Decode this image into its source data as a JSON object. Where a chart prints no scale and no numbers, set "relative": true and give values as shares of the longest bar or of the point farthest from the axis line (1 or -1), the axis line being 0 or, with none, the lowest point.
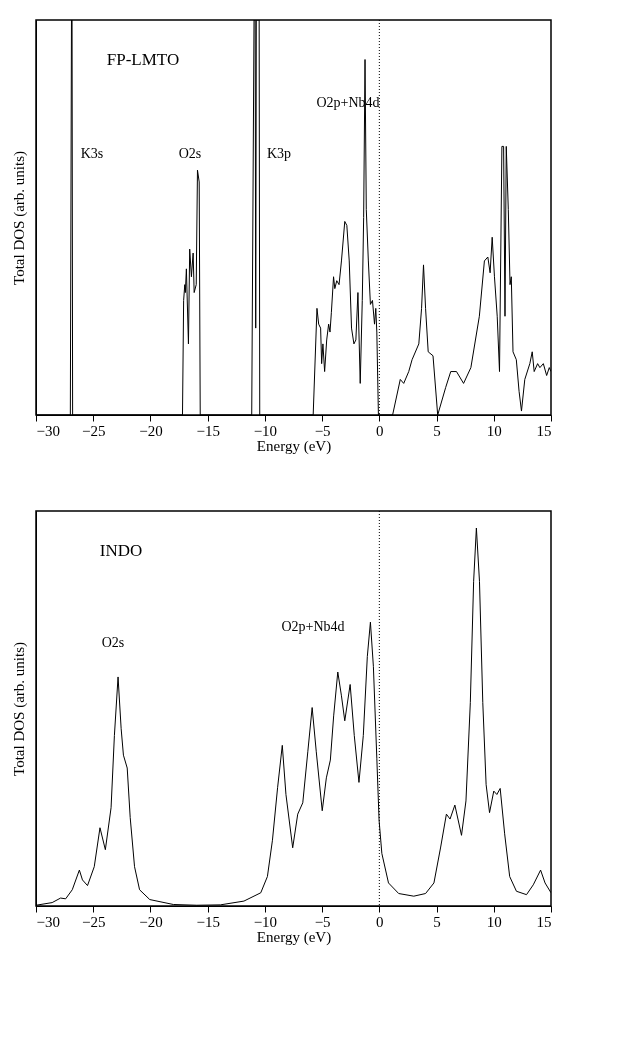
{
  "chart_data": [
    {
      "type": "line",
      "relative": true,
      "xlabel": "Energy (eV)",
      "ylabel": "Total DOS (arb. units)",
      "xlim": [
        -30,
        15
      ],
      "xticks": [
        -30,
        -25,
        -20,
        -15,
        -10,
        -5,
        0,
        5,
        10,
        15
      ],
      "tick_labels": "x",
      "grid": false,
      "line_style": "solid",
      "annotations": [
        "FP-LMTO",
        "K3s",
        "O2s",
        "K3p",
        "O2p+Nb4d"
      ],
      "ref_lines": [
        {
          "axis": "x",
          "value": 0,
          "label": null,
          "color": "#000000",
          "line_style": "dotted"
        }
      ],
      "series": [
        {
          "color": "#000000",
          "x": [
            -30,
            -27.0,
            -26.9,
            -26.85,
            -26.8,
            -17.2,
            -17.1,
            -17.0,
            -16.95,
            -16.86,
            -16.68,
            -16.57,
            -16.42,
            -16.27,
            -16.18,
            -16.0,
            -15.89,
            -15.74,
            -15.65,
            -11.15,
            -10.95,
            -10.85,
            -10.8,
            -10.75,
            -10.5,
            -10.45,
            -5.78,
            -5.45,
            -5.3,
            -5.13,
            -5.04,
            -4.93,
            -4.78,
            -4.6,
            -4.43,
            -4.31,
            -4.19,
            -4.0,
            -3.89,
            -3.72,
            -3.52,
            -3.31,
            -3.02,
            -2.84,
            -2.63,
            -2.43,
            -2.22,
            -2.05,
            -1.87,
            -1.67,
            -1.49,
            -1.37,
            -1.25,
            -1.14,
            -0.96,
            -0.78,
            -0.6,
            -0.42,
            -0.31,
            -0.22,
            -0.08,
            1.16,
            1.83,
            2.13,
            2.57,
            2.86,
            3.45,
            3.69,
            3.86,
            4.04,
            4.27,
            4.69,
            5.1,
            5.8,
            6.24,
            6.74,
            7.36,
            8.0,
            8.74,
            9.18,
            9.48,
            9.68,
            9.86,
            10.06,
            10.3,
            10.5,
            10.71,
            10.86,
            10.98,
            11.09,
            11.27,
            11.42,
            11.53,
            11.68,
            11.97,
            12.21,
            12.42,
            12.71,
            13.15,
            13.36,
            13.53,
            13.83,
            14.03,
            14.33,
            14.62,
            14.85,
            15.0
          ],
          "values": [
            0,
            0,
            1,
            1,
            0,
            0,
            0.29,
            0.33,
            0.31,
            0.37,
            0.18,
            0.42,
            0.35,
            0.41,
            0.31,
            0.33,
            0.62,
            0.59,
            0,
            0,
            1,
            1,
            0.22,
            1,
            1,
            0,
            0,
            0.27,
            0.23,
            0.22,
            0.13,
            0.18,
            0.11,
            0.19,
            0.23,
            0.21,
            0.26,
            0.35,
            0.32,
            0.34,
            0.33,
            0.39,
            0.49,
            0.48,
            0.39,
            0.22,
            0.18,
            0.19,
            0.31,
            0.08,
            0.29,
            0.5,
            0.9,
            0.52,
            0.39,
            0.28,
            0.29,
            0.23,
            0.27,
            0.21,
            0,
            0,
            0.09,
            0.08,
            0.11,
            0.14,
            0.18,
            0.27,
            0.38,
            0.27,
            0.16,
            0.15,
            0,
            0.07,
            0.11,
            0.11,
            0.08,
            0.12,
            0.25,
            0.39,
            0.4,
            0.36,
            0.45,
            0.35,
            0.25,
            0.11,
            0.68,
            0.68,
            0.25,
            0.68,
            0.52,
            0.33,
            0.35,
            0.16,
            0.14,
            0.06,
            0.01,
            0.09,
            0.13,
            0.16,
            0.11,
            0.13,
            0.12,
            0.13,
            0.1,
            0.12,
            0.11
          ]
        }
      ]
    },
    {
      "type": "line",
      "relative": true,
      "xlabel": "Energy (eV)",
      "ylabel": "Total DOS (arb. units)",
      "xlim": [
        -30,
        15
      ],
      "xticks": [
        -30,
        -25,
        -20,
        -15,
        -10,
        -5,
        0,
        5,
        10,
        15
      ],
      "tick_labels": "x",
      "grid": false,
      "line_style": "solid",
      "annotations": [
        "INDO",
        "O2s",
        "O2p+Nb4d"
      ],
      "ref_lines": [
        {
          "axis": "x",
          "value": 0,
          "label": null,
          "color": "#000000",
          "line_style": "dotted"
        }
      ],
      "series": [
        {
          "color": "#000000",
          "x": [
            -30,
            -28.59,
            -27.85,
            -27.41,
            -26.83,
            -26.21,
            -25.94,
            -25.5,
            -24.91,
            -24.41,
            -23.94,
            -23.44,
            -23.15,
            -22.83,
            -22.56,
            -22.36,
            -22.03,
            -21.77,
            -21.39,
            -20.95,
            -20.06,
            -18.0,
            -15.95,
            -13.89,
            -11.83,
            -10.36,
            -9.78,
            -9.34,
            -8.89,
            -8.48,
            -8.16,
            -7.57,
            -7.13,
            -6.69,
            -6.25,
            -5.87,
            -5.51,
            -4.99,
            -4.63,
            -4.28,
            -3.99,
            -3.63,
            -3.31,
            -3.02,
            -2.55,
            -2.19,
            -1.78,
            -1.4,
            -1.05,
            -0.78,
            -0.52,
            -0.22,
            -0.02,
            0.22,
            0.8,
            1.69,
            3.01,
            4.04,
            4.77,
            5.36,
            5.86,
            6.18,
            6.6,
            7.18,
            7.57,
            7.95,
            8.24,
            8.48,
            8.75,
            9.04,
            9.33,
            9.63,
            10.0,
            10.27,
            10.56,
            10.95,
            11.39,
            11.98,
            12.86,
            13.45,
            14.09,
            14.48,
            15.0
          ],
          "values": [
            0.002,
            0.009,
            0.021,
            0.019,
            0.043,
            0.095,
            0.069,
            0.054,
            0.104,
            0.207,
            0.149,
            0.26,
            0.451,
            0.606,
            0.469,
            0.399,
            0.365,
            0.234,
            0.104,
            0.043,
            0.017,
            0.004,
            0.002,
            0.003,
            0.013,
            0.035,
            0.078,
            0.174,
            0.313,
            0.425,
            0.295,
            0.154,
            0.243,
            0.273,
            0.408,
            0.525,
            0.408,
            0.252,
            0.339,
            0.386,
            0.503,
            0.619,
            0.556,
            0.49,
            0.586,
            0.451,
            0.327,
            0.451,
            0.66,
            0.751,
            0.634,
            0.391,
            0.226,
            0.139,
            0.061,
            0.033,
            0.026,
            0.033,
            0.061,
            0.156,
            0.243,
            0.23,
            0.267,
            0.187,
            0.278,
            0.538,
            0.859,
            1.0,
            0.859,
            0.538,
            0.321,
            0.247,
            0.304,
            0.295,
            0.311,
            0.191,
            0.078,
            0.039,
            0.03,
            0.056,
            0.095,
            0.061,
            0.035
          ]
        }
      ]
    }
  ]
}
